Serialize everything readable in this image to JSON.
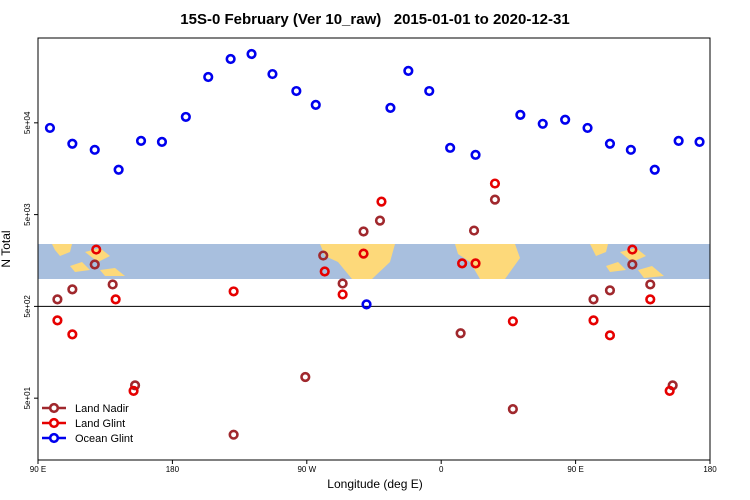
{
  "chart_data": {
    "type": "scatter",
    "title": "15S-0 February (Ver 10_raw)   2015-01-01 to 2020-12-31",
    "x_label": "Longitude (deg E)",
    "y_label": "N Total",
    "xlim": [
      90,
      540
    ],
    "xticks": [
      {
        "value": 90,
        "label": "90 E"
      },
      180,
      {
        "value": 270,
        "label": "90 W"
      },
      {
        "value": 360,
        "label": "0"
      },
      {
        "value": 450,
        "label": "90 E"
      },
      {
        "value": 540,
        "label": "180"
      }
    ],
    "ylim": [
      10.6,
      420000
    ],
    "log_y": true,
    "yticks": [
      {
        "value": 50,
        "label": "5e+01"
      },
      {
        "value": 500,
        "label": "5e+02"
      },
      {
        "value": 5000,
        "label": "5e+03"
      },
      {
        "value": 50000,
        "label": "5e+04"
      }
    ],
    "legend": "lower left",
    "series": [
      {
        "name": "Land Nadir",
        "color": "#a0282d",
        "x": [
          103,
          113,
          128,
          140,
          155,
          221,
          269,
          281,
          294,
          308,
          319,
          373,
          382,
          396,
          408,
          462,
          473,
          488,
          500,
          515
        ],
        "values": [
          596,
          766,
          1430,
          867,
          69,
          20,
          85,
          1790,
          889,
          3270,
          4300,
          255,
          3350,
          7280,
          38,
          596,
          747,
          1430,
          867,
          69
        ]
      },
      {
        "name": "Land Glint",
        "color": "#e60000",
        "x": [
          103,
          113,
          129,
          142,
          154,
          221,
          282,
          294,
          308,
          320,
          374,
          383,
          396,
          408,
          462,
          473,
          488,
          500,
          513
        ],
        "values": [
          352,
          248,
          2080,
          596,
          60,
          728,
          1200,
          675,
          1880,
          6920,
          1470,
          1470,
          10900,
          344,
          352,
          242,
          2080,
          596,
          60
        ]
      },
      {
        "name": "Ocean Glint",
        "color": "#0000ee",
        "x": [
          98,
          113,
          128,
          144,
          159,
          173,
          189,
          204,
          219,
          233,
          247,
          263,
          276,
          310,
          326,
          338,
          352,
          366,
          383,
          413,
          428,
          443,
          458,
          473,
          487,
          503,
          519,
          533
        ],
        "values": [
          44000,
          29600,
          25400,
          15400,
          31800,
          31000,
          58000,
          158000,
          248000,
          281000,
          170000,
          111000,
          78500,
          526,
          72800,
          184000,
          111000,
          26700,
          22400,
          61100,
          48800,
          54000,
          44000,
          29600,
          25400,
          15400,
          31800,
          31000
        ]
      }
    ]
  }
}
